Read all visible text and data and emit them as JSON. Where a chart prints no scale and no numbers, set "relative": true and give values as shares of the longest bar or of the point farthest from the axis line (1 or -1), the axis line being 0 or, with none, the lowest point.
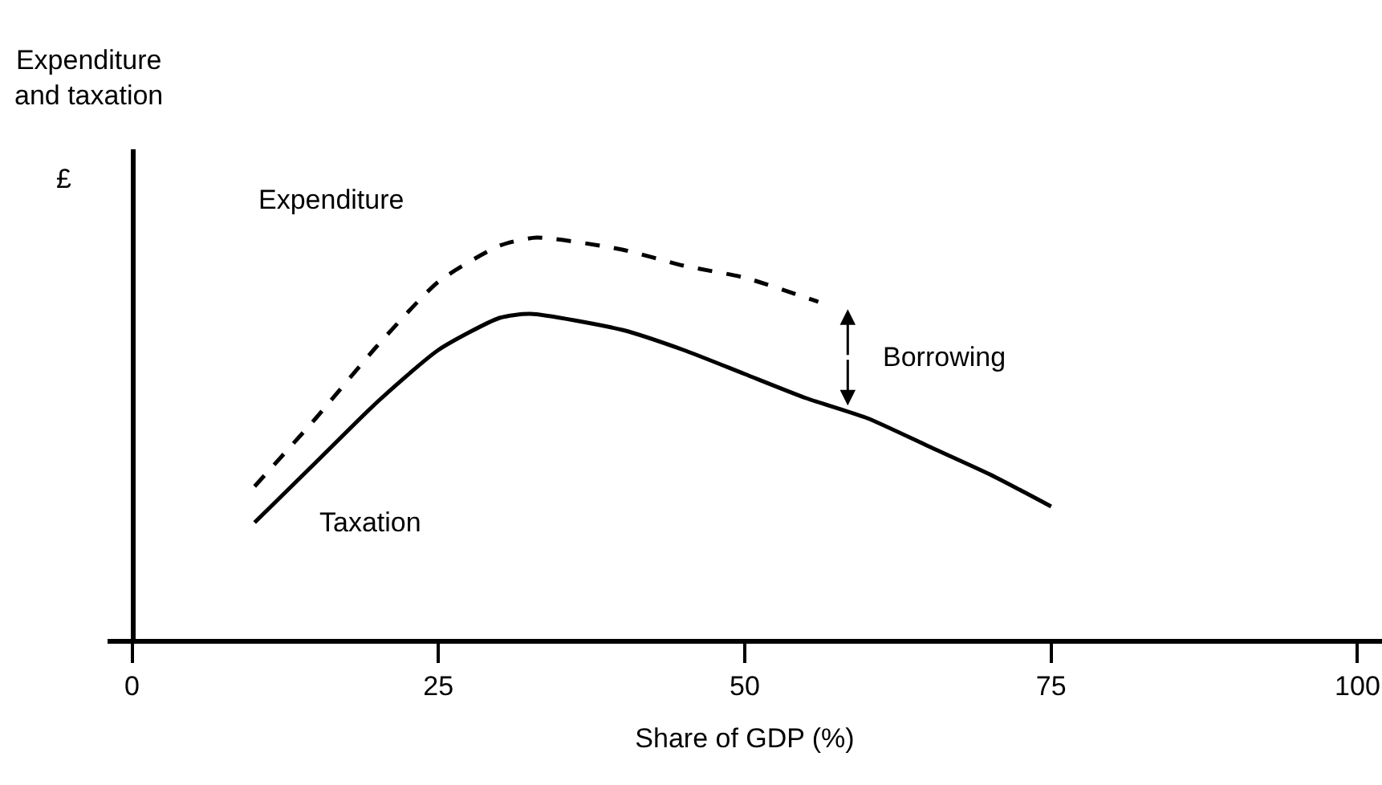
{
  "chart_data": {
    "type": "line",
    "relative": true,
    "ylabel": "Expenditure\nand taxation",
    "xlabel": "Share of GDP (%)",
    "xlim": [
      -2,
      102
    ],
    "xticks": [
      0,
      25,
      50,
      75,
      100
    ],
    "legend": false,
    "series": [
      {
        "name": "Expenditure",
        "color": "#000000",
        "line_style": "dashed",
        "x": [
          10,
          15,
          20,
          25,
          30,
          33,
          40,
          45,
          50,
          56
        ],
        "values": [
          0.38,
          0.55,
          0.73,
          0.89,
          0.98,
          1.0,
          0.97,
          0.93,
          0.9,
          0.84
        ]
      },
      {
        "name": "Taxation",
        "color": "#000000",
        "line_style": "solid",
        "x": [
          10,
          15,
          20,
          25,
          30,
          32.5,
          40,
          45,
          50,
          55,
          60,
          65,
          70,
          75
        ],
        "values": [
          0.29,
          0.44,
          0.59,
          0.72,
          0.8,
          0.81,
          0.77,
          0.72,
          0.66,
          0.6,
          0.55,
          0.48,
          0.41,
          0.33
        ]
      }
    ],
    "annotations": [
      "£",
      "Borrowing"
    ]
  }
}
